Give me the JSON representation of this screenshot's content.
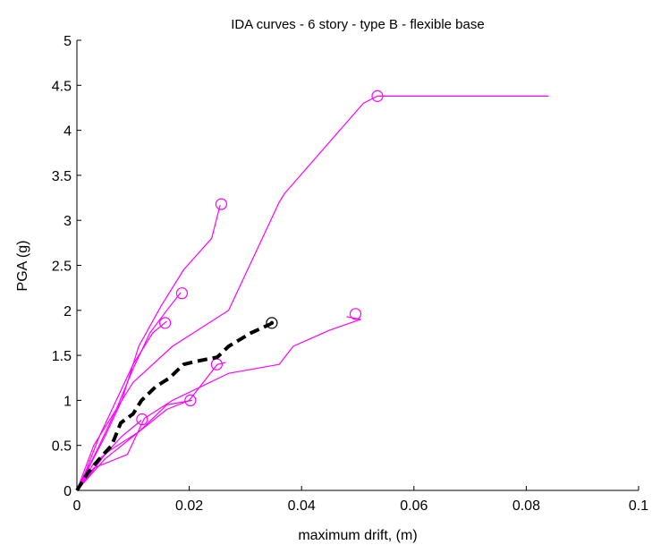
{
  "chart_data": {
    "type": "line",
    "title": "IDA curves - 6 story - type B - flexible base",
    "xlabel": "maximum drift, (m)",
    "ylabel": "PGA (g)",
    "xlim": [
      0,
      0.1
    ],
    "ylim": [
      0,
      5
    ],
    "xticks": [
      0,
      0.02,
      0.04,
      0.06,
      0.08,
      0.1
    ],
    "yticks": [
      0,
      0.5,
      1,
      1.5,
      2,
      2.5,
      3,
      3.5,
      4,
      4.5,
      5
    ],
    "xtick_labels": [
      "0",
      "0.02",
      "0.04",
      "0.06",
      "0.08",
      "0.1"
    ],
    "ytick_labels": [
      "0",
      "0.5",
      "1",
      "1.5",
      "2",
      "2.5",
      "3",
      "3.5",
      "4",
      "4.5",
      "5"
    ],
    "grid": false,
    "legend": "none",
    "colors": {
      "records": "#ff00ff",
      "median": "#000000"
    },
    "series": [
      {
        "points": [
          [
            0,
            0
          ],
          [
            0.003,
            0.5
          ],
          [
            0.01,
            1.2
          ],
          [
            0.017,
            1.6
          ],
          [
            0.027,
            2.0
          ],
          [
            0.036,
            3.2
          ],
          [
            0.037,
            3.3
          ],
          [
            0.051,
            4.3
          ],
          [
            0.0535,
            4.38
          ],
          [
            0.084,
            4.38
          ]
        ],
        "marker": [
          0.0535,
          4.38
        ]
      },
      {
        "points": [
          [
            0,
            0
          ],
          [
            0.0025,
            0.3
          ],
          [
            0.005,
            0.6
          ],
          [
            0.008,
            1.0
          ],
          [
            0.011,
            1.6
          ],
          [
            0.015,
            2.05
          ],
          [
            0.019,
            2.45
          ],
          [
            0.024,
            2.8
          ],
          [
            0.0255,
            3.17
          ]
        ],
        "marker": [
          0.0257,
          3.18
        ]
      },
      {
        "points": [
          [
            0,
            0
          ],
          [
            0.002,
            0.25
          ],
          [
            0.004,
            0.5
          ],
          [
            0.007,
            0.9
          ],
          [
            0.01,
            1.35
          ],
          [
            0.013,
            1.75
          ],
          [
            0.016,
            2.0
          ],
          [
            0.0185,
            2.2
          ]
        ],
        "marker": [
          0.0187,
          2.19
        ]
      },
      {
        "points": [
          [
            0,
            0
          ],
          [
            0.0015,
            0.2
          ],
          [
            0.004,
            0.6
          ],
          [
            0.007,
            1.0
          ],
          [
            0.01,
            1.4
          ],
          [
            0.0135,
            1.75
          ],
          [
            0.016,
            1.88
          ]
        ],
        "marker": [
          0.0157,
          1.86
        ]
      },
      {
        "points": [
          [
            0,
            0
          ],
          [
            0.003,
            0.25
          ],
          [
            0.009,
            0.4
          ],
          [
            0.012,
            0.8
          ],
          [
            0.017,
            1.0
          ],
          [
            0.027,
            1.3
          ],
          [
            0.036,
            1.4
          ],
          [
            0.0385,
            1.6
          ],
          [
            0.045,
            1.78
          ],
          [
            0.0505,
            1.9
          ],
          [
            0.048,
            1.93
          ]
        ],
        "marker": [
          0.0496,
          1.96
        ]
      },
      {
        "points": [
          [
            0,
            0
          ],
          [
            0.005,
            0.35
          ],
          [
            0.01,
            0.6
          ],
          [
            0.016,
            0.9
          ],
          [
            0.02,
            1.0
          ],
          [
            0.025,
            1.4
          ],
          [
            0.0265,
            1.42
          ]
        ],
        "marker": [
          0.0249,
          1.4
        ]
      },
      {
        "points": [
          [
            0,
            0
          ],
          [
            0.003,
            0.3
          ],
          [
            0.006,
            0.45
          ],
          [
            0.011,
            0.65
          ],
          [
            0.016,
            0.95
          ],
          [
            0.0205,
            1.0
          ]
        ],
        "marker": [
          0.0202,
          1.0
        ]
      },
      {
        "points": [
          [
            0,
            0
          ],
          [
            0.002,
            0.15
          ],
          [
            0.005,
            0.4
          ],
          [
            0.008,
            0.6
          ],
          [
            0.0115,
            0.78
          ]
        ],
        "marker": [
          0.0116,
          0.79
        ]
      }
    ],
    "median": {
      "points": [
        [
          0,
          0
        ],
        [
          0.002,
          0.2
        ],
        [
          0.004,
          0.35
        ],
        [
          0.0062,
          0.5
        ],
        [
          0.0078,
          0.75
        ],
        [
          0.01,
          0.85
        ],
        [
          0.0115,
          1.0
        ],
        [
          0.014,
          1.15
        ],
        [
          0.0165,
          1.25
        ],
        [
          0.019,
          1.4
        ],
        [
          0.021,
          1.43
        ],
        [
          0.025,
          1.48
        ],
        [
          0.027,
          1.6
        ],
        [
          0.031,
          1.75
        ],
        [
          0.0345,
          1.85
        ]
      ],
      "marker": [
        0.0347,
        1.86
      ]
    }
  }
}
